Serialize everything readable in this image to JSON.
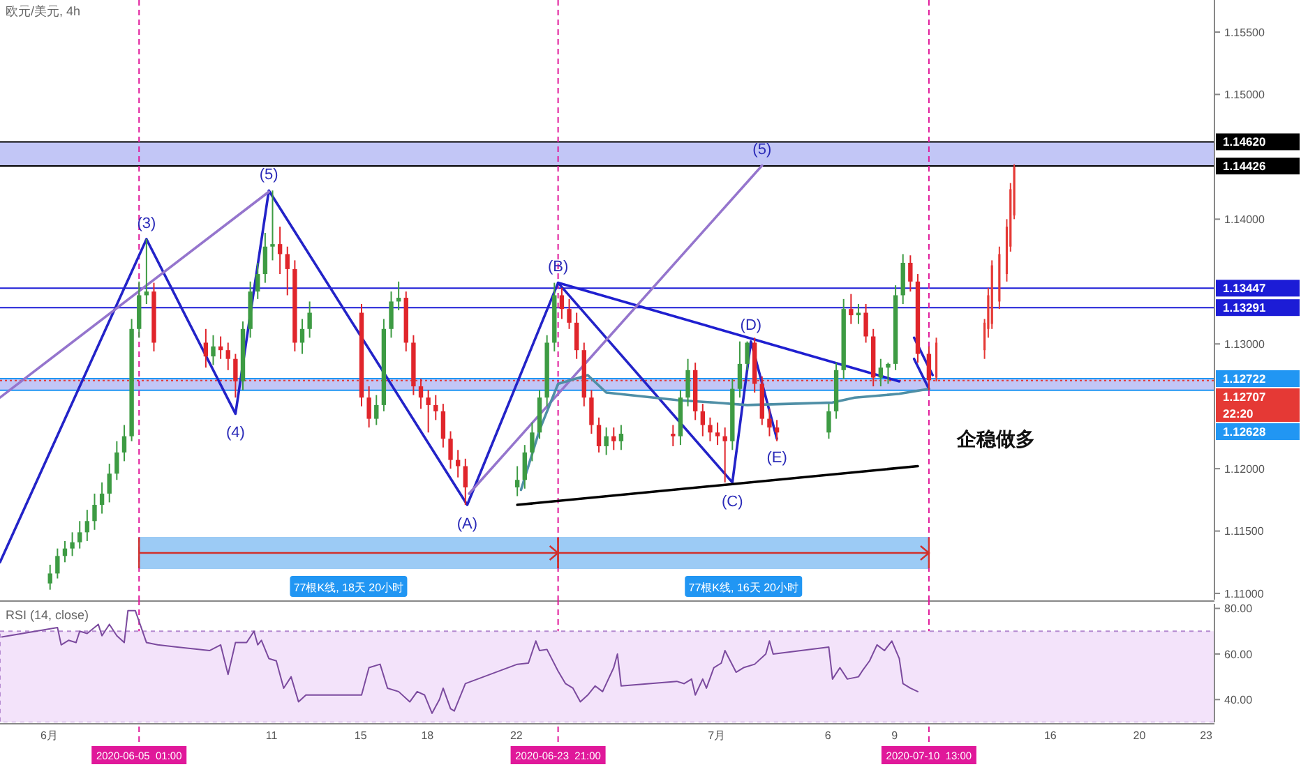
{
  "chart_data": [
    {
      "type": "candlestick",
      "title": "欧元/美元, 4h",
      "xlim": [
        "2020-05-29T19:00",
        "2020-07-23T09:00"
      ],
      "ylim": [
        1.1095,
        1.15757
      ],
      "yticks": [
        {
          "value": 1.11,
          "label": "1.11000"
        },
        {
          "value": 1.115,
          "label": "1.11500"
        },
        {
          "value": 1.12,
          "label": "1.12000"
        },
        {
          "value": 1.13,
          "label": "1.13000"
        },
        {
          "value": 1.14,
          "label": "1.14000"
        },
        {
          "value": 1.15,
          "label": "1.15000"
        },
        {
          "value": 1.155,
          "label": "1.15500"
        }
      ],
      "tick_labels": "y",
      "series": [
        {
          "type": "candlestick",
          "x": [
            "2020-06-01T01:00",
            "2020-06-01T09:00",
            "2020-06-01T17:00",
            "2020-06-02T01:00",
            "2020-06-02T09:00",
            "2020-06-02T17:00",
            "2020-06-03T01:00",
            "2020-06-03T09:00",
            "2020-06-03T17:00",
            "2020-06-04T01:00",
            "2020-06-04T09:00",
            "2020-06-04T17:00",
            "2020-06-05T01:00",
            "2020-06-05T09:00",
            "2020-06-05T17:00",
            "2020-06-08T01:00",
            "2020-06-08T09:00",
            "2020-06-08T17:00",
            "2020-06-09T01:00",
            "2020-06-09T09:00",
            "2020-06-09T17:00",
            "2020-06-10T01:00",
            "2020-06-10T09:00",
            "2020-06-10T17:00",
            "2020-06-11T01:00",
            "2020-06-11T09:00",
            "2020-06-11T17:00",
            "2020-06-12T01:00",
            "2020-06-12T09:00",
            "2020-06-12T17:00",
            "2020-06-15T01:00",
            "2020-06-15T09:00",
            "2020-06-15T17:00",
            "2020-06-16T01:00",
            "2020-06-16T09:00",
            "2020-06-16T17:00",
            "2020-06-17T01:00",
            "2020-06-17T09:00",
            "2020-06-17T17:00",
            "2020-06-18T01:00",
            "2020-06-18T09:00",
            "2020-06-18T17:00",
            "2020-06-19T01:00",
            "2020-06-19T09:00",
            "2020-06-19T17:00",
            "2020-06-22T01:00",
            "2020-06-22T09:00",
            "2020-06-22T17:00",
            "2020-06-23T01:00",
            "2020-06-23T09:00",
            "2020-06-23T17:00",
            "2020-06-24T01:00",
            "2020-06-24T09:00",
            "2020-06-24T17:00",
            "2020-06-25T01:00",
            "2020-06-25T09:00",
            "2020-06-25T17:00",
            "2020-06-26T01:00",
            "2020-06-26T09:00",
            "2020-06-26T17:00",
            "2020-06-29T01:00",
            "2020-06-29T09:00",
            "2020-06-29T17:00",
            "2020-06-30T01:00",
            "2020-06-30T09:00",
            "2020-06-30T17:00",
            "2020-07-01T01:00",
            "2020-07-01T09:00",
            "2020-07-01T17:00",
            "2020-07-02T01:00",
            "2020-07-02T09:00",
            "2020-07-02T17:00",
            "2020-07-03T01:00",
            "2020-07-03T09:00",
            "2020-07-03T17:00",
            "2020-07-06T01:00",
            "2020-07-06T09:00",
            "2020-07-06T17:00",
            "2020-07-07T01:00",
            "2020-07-07T09:00",
            "2020-07-07T17:00",
            "2020-07-08T01:00",
            "2020-07-08T09:00",
            "2020-07-08T17:00",
            "2020-07-09T01:00",
            "2020-07-09T09:00",
            "2020-07-09T17:00",
            "2020-07-10T01:00",
            "2020-07-10T13:00"
          ],
          "ohlc": [
            [
              1.1108,
              1.1123,
              1.1103,
              1.1116
            ],
            [
              1.1116,
              1.1136,
              1.1112,
              1.113
            ],
            [
              1.113,
              1.1142,
              1.1125,
              1.1136
            ],
            [
              1.1136,
              1.1149,
              1.113,
              1.1141
            ],
            [
              1.1141,
              1.1158,
              1.1136,
              1.1149
            ],
            [
              1.1149,
              1.1167,
              1.1142,
              1.1158
            ],
            [
              1.1158,
              1.118,
              1.1151,
              1.1171
            ],
            [
              1.1171,
              1.1189,
              1.1164,
              1.118
            ],
            [
              1.118,
              1.1204,
              1.1173,
              1.1196
            ],
            [
              1.1196,
              1.1222,
              1.1191,
              1.1213
            ],
            [
              1.1213,
              1.1235,
              1.1206,
              1.1226
            ],
            [
              1.1226,
              1.132,
              1.1222,
              1.1312
            ],
            [
              1.1312,
              1.135,
              1.1305,
              1.1339
            ],
            [
              1.1339,
              1.1384,
              1.1332,
              1.1342
            ],
            [
              1.1342,
              1.1349,
              1.1294,
              1.1301
            ],
            [
              1.1301,
              1.1312,
              1.1281,
              1.129
            ],
            [
              1.129,
              1.1307,
              1.1283,
              1.1298
            ],
            [
              1.1298,
              1.1306,
              1.1288,
              1.1295
            ],
            [
              1.1295,
              1.1301,
              1.1279,
              1.1288
            ],
            [
              1.1288,
              1.1292,
              1.1257,
              1.127
            ],
            [
              1.127,
              1.1318,
              1.1263,
              1.1312
            ],
            [
              1.1312,
              1.135,
              1.1305,
              1.1342
            ],
            [
              1.1342,
              1.1365,
              1.1336,
              1.1356
            ],
            [
              1.1356,
              1.1389,
              1.1349,
              1.1378
            ],
            [
              1.1378,
              1.1423,
              1.1367,
              1.138
            ],
            [
              1.138,
              1.1394,
              1.1356,
              1.1372
            ],
            [
              1.1372,
              1.1378,
              1.1339,
              1.136
            ],
            [
              1.136,
              1.1367,
              1.1294,
              1.1301
            ],
            [
              1.1301,
              1.132,
              1.1292,
              1.1312
            ],
            [
              1.1312,
              1.1334,
              1.1305,
              1.1325
            ],
            [
              1.1325,
              1.1332,
              1.125,
              1.1257
            ],
            [
              1.1257,
              1.1266,
              1.1233,
              1.124
            ],
            [
              1.124,
              1.1259,
              1.1235,
              1.1251
            ],
            [
              1.1251,
              1.132,
              1.1246,
              1.1312
            ],
            [
              1.1312,
              1.1342,
              1.1305,
              1.1334
            ],
            [
              1.1334,
              1.135,
              1.1327,
              1.1337
            ],
            [
              1.1337,
              1.1342,
              1.1294,
              1.1301
            ],
            [
              1.1301,
              1.1307,
              1.1259,
              1.1266
            ],
            [
              1.1266,
              1.1272,
              1.1248,
              1.1257
            ],
            [
              1.1257,
              1.1263,
              1.1229,
              1.1251
            ],
            [
              1.1251,
              1.1259,
              1.1239,
              1.1246
            ],
            [
              1.1246,
              1.1252,
              1.1217,
              1.1224
            ],
            [
              1.1224,
              1.123,
              1.12,
              1.1207
            ],
            [
              1.1207,
              1.1215,
              1.1193,
              1.1202
            ],
            [
              1.1202,
              1.1208,
              1.1171,
              1.1185
            ],
            [
              1.1185,
              1.1202,
              1.1178,
              1.1191
            ],
            [
              1.1191,
              1.1219,
              1.1184,
              1.1213
            ],
            [
              1.1213,
              1.1237,
              1.1206,
              1.1229
            ],
            [
              1.1229,
              1.1263,
              1.1224,
              1.1257
            ],
            [
              1.1257,
              1.1307,
              1.125,
              1.1301
            ],
            [
              1.1301,
              1.1349,
              1.1294,
              1.1339
            ],
            [
              1.1339,
              1.1345,
              1.132,
              1.1328
            ],
            [
              1.1328,
              1.1336,
              1.1312,
              1.1317
            ],
            [
              1.1317,
              1.1325,
              1.1288,
              1.1295
            ],
            [
              1.1295,
              1.1301,
              1.125,
              1.1257
            ],
            [
              1.1257,
              1.1263,
              1.1228,
              1.1235
            ],
            [
              1.1235,
              1.1241,
              1.1213,
              1.1218
            ],
            [
              1.1218,
              1.1233,
              1.1211,
              1.1226
            ],
            [
              1.1226,
              1.1233,
              1.1215,
              1.1222
            ],
            [
              1.1222,
              1.1235,
              1.1215,
              1.1228
            ],
            [
              1.1228,
              1.1235,
              1.1218,
              1.1226
            ],
            [
              1.1226,
              1.1263,
              1.1219,
              1.1257
            ],
            [
              1.1257,
              1.1288,
              1.125,
              1.1279
            ],
            [
              1.1279,
              1.1285,
              1.1239,
              1.1246
            ],
            [
              1.1246,
              1.1252,
              1.1226,
              1.1235
            ],
            [
              1.1235,
              1.1241,
              1.1222,
              1.1229
            ],
            [
              1.1229,
              1.1237,
              1.1219,
              1.1226
            ],
            [
              1.1226,
              1.1233,
              1.1189,
              1.1222
            ],
            [
              1.1222,
              1.1272,
              1.1215,
              1.1264
            ],
            [
              1.1264,
              1.1302,
              1.1257,
              1.1284
            ],
            [
              1.1284,
              1.1302,
              1.1279,
              1.1301
            ],
            [
              1.1301,
              1.1305,
              1.1261,
              1.1268
            ],
            [
              1.1268,
              1.1274,
              1.1235,
              1.124
            ],
            [
              1.124,
              1.1248,
              1.1226,
              1.1233
            ],
            [
              1.1233,
              1.1239,
              1.1222,
              1.1229
            ],
            [
              1.1229,
              1.1252,
              1.1224,
              1.1246
            ],
            [
              1.1246,
              1.1285,
              1.124,
              1.1279
            ],
            [
              1.1279,
              1.1336,
              1.1272,
              1.1328
            ],
            [
              1.1328,
              1.134,
              1.1316,
              1.1323
            ],
            [
              1.1323,
              1.1332,
              1.1316,
              1.1325
            ],
            [
              1.1325,
              1.1332,
              1.1301,
              1.1306
            ],
            [
              1.1306,
              1.1312,
              1.1266,
              1.1273
            ],
            [
              1.1273,
              1.1288,
              1.1266,
              1.1281
            ],
            [
              1.1281,
              1.1285,
              1.1268,
              1.1284
            ],
            [
              1.1284,
              1.1347,
              1.1279,
              1.1339
            ],
            [
              1.1339,
              1.1372,
              1.1332,
              1.1365
            ],
            [
              1.1365,
              1.1371,
              1.1342,
              1.135
            ],
            [
              1.135,
              1.1356,
              1.1285,
              1.1292
            ],
            [
              1.1292,
              1.1298,
              1.1263,
              1.1271
            ]
          ]
        },
        {
          "type": "candlestick",
          "color": "#e53935",
          "x": [
            "2020-07-10T21:00",
            "2020-07-13T01:00",
            "2020-07-13T05:00",
            "2020-07-13T09:00",
            "2020-07-13T17:00",
            "2020-07-14T01:00",
            "2020-07-14T05:00",
            "2020-07-14T09:00"
          ],
          "ohlc": [
            [
              1.1273,
              1.1305,
              1.127,
              1.1301
            ],
            [
              1.1295,
              1.132,
              1.1288,
              1.1317
            ],
            [
              1.1312,
              1.1345,
              1.1305,
              1.1339
            ],
            [
              1.1316,
              1.1367,
              1.1312,
              1.1363
            ],
            [
              1.1334,
              1.1378,
              1.1328,
              1.1372
            ],
            [
              1.1356,
              1.14,
              1.135,
              1.1394
            ],
            [
              1.1378,
              1.1429,
              1.1374,
              1.1424
            ],
            [
              1.1403,
              1.1444,
              1.14,
              1.1442
            ]
          ]
        },
        {
          "type": "line",
          "color": "#2323c8",
          "x": [
            "2020-05-29T19:00",
            "2020-06-05T09:00",
            "2020-06-09T09:00",
            "2020-06-10T21:00",
            "2020-06-19T19:00",
            "2020-06-23T21:00",
            "2020-07-01T17:00",
            "2020-07-02T13:00",
            "2020-07-03T17:00"
          ],
          "values": [
            1.1125,
            1.1384,
            1.1244,
            1.1423,
            1.1171,
            1.1349,
            1.1189,
            1.1302,
            1.1224
          ]
        },
        {
          "type": "line",
          "color": "#1f1fd0",
          "x": [
            "2020-06-23T21:00",
            "2020-07-09T05:00"
          ],
          "values": [
            1.1349,
            1.127
          ]
        },
        {
          "type": "line",
          "color": "#000000",
          "x": [
            "2020-06-22T01:00",
            "2020-07-10T01:00"
          ],
          "values": [
            1.1171,
            1.1202
          ]
        },
        {
          "type": "line",
          "color": "#9575cd",
          "x": [
            "2020-05-29T19:00",
            "2020-06-10T21:00"
          ],
          "values": [
            1.1257,
            1.1422
          ]
        },
        {
          "type": "line",
          "color": "#9575cd",
          "x": [
            "2020-06-19T21:00",
            "2020-07-03T01:00"
          ],
          "values": [
            1.118,
            1.1443
          ]
        },
        {
          "type": "line",
          "color": "#2323c8",
          "x": [
            "2020-07-09T21:00",
            "2020-07-10T17:00"
          ],
          "values": [
            1.1305,
            1.1275
          ]
        },
        {
          "type": "line",
          "color": "#2323c8",
          "x": [
            "2020-07-09T21:00",
            "2020-07-10T13:00"
          ],
          "values": [
            1.1288,
            1.1264
          ]
        },
        {
          "type": "line",
          "color": "#4f8fa6",
          "x": [
            "2020-06-22T05:00",
            "2020-06-23T01:00",
            "2020-06-23T21:00",
            "2020-06-25T05:00",
            "2020-06-26T01:00",
            "2020-06-29T05:00",
            "2020-06-30T21:00",
            "2020-07-02T09:00",
            "2020-07-06T05:00",
            "2020-07-07T05:00",
            "2020-07-09T05:00",
            "2020-07-10T13:00"
          ],
          "values": [
            1.1183,
            1.1231,
            1.1268,
            1.1275,
            1.1261,
            1.1255,
            1.1253,
            1.1251,
            1.1253,
            1.1257,
            1.126,
            1.1264
          ]
        }
      ],
      "bands": [
        {
          "axis": "y",
          "from": 1.14426,
          "to": 1.1462,
          "color": "#aeb3f3"
        },
        {
          "axis": "y",
          "from": 1.12628,
          "to": 1.12722,
          "color": "#aeb3f3"
        },
        {
          "axis": "x",
          "from": "2020-06-05T01:00",
          "to": "2020-06-23T21:00",
          "label": "77根K线, 18天 20小时",
          "color": "#9ccbf5"
        },
        {
          "axis": "x",
          "from": "2020-06-23T21:00",
          "to": "2020-07-10T13:00",
          "label": "77根K线, 16天 20小时",
          "color": "#9ccbf5"
        }
      ],
      "ref_lines": [
        {
          "axis": "y",
          "value": 1.1462,
          "label": "1.14620",
          "color": "#000000",
          "line_style": "solid"
        },
        {
          "axis": "y",
          "value": 1.14426,
          "label": "1.14426",
          "color": "#000000",
          "line_style": "solid"
        },
        {
          "axis": "y",
          "value": 1.13447,
          "label": "1.13447",
          "color": "#1c1cd6",
          "line_style": "solid"
        },
        {
          "axis": "y",
          "value": 1.13291,
          "label": "1.13291",
          "color": "#1c1cd6",
          "line_style": "solid"
        },
        {
          "axis": "y",
          "value": 1.12722,
          "label": "1.12722",
          "color": "#2196f3",
          "line_style": "solid"
        },
        {
          "axis": "y",
          "value": 1.12707,
          "label": "1.12707\n22:20",
          "color": "#e53935",
          "line_style": "dotted"
        },
        {
          "axis": "y",
          "value": 1.12628,
          "label": "1.12628",
          "color": "#2196f3",
          "line_style": "solid"
        },
        {
          "axis": "x",
          "value": "2020-06-05T01:00",
          "label": "2020-06-05  01:00",
          "color": "#e0189a",
          "line_style": "dashed"
        },
        {
          "axis": "x",
          "value": "2020-06-23T21:00",
          "label": "2020-06-23  21:00",
          "color": "#e0189a",
          "line_style": "dashed"
        },
        {
          "axis": "x",
          "value": "2020-07-10T13:00",
          "label": "2020-07-10  13:00",
          "color": "#e0189a",
          "line_style": "dashed"
        }
      ],
      "annotations": [
        {
          "text": "(3)",
          "x": "2020-06-05T09:00",
          "y": 1.1384
        },
        {
          "text": "(4)",
          "x": "2020-06-09T09:00",
          "y": 1.1244
        },
        {
          "text": "(5)",
          "x": "2020-06-10T21:00",
          "y": 1.1423
        },
        {
          "text": "(A)",
          "x": "2020-06-19T19:00",
          "y": 1.1171
        },
        {
          "text": "(B)",
          "x": "2020-06-23T21:00",
          "y": 1.1349
        },
        {
          "text": "(C)",
          "x": "2020-07-01T17:00",
          "y": 1.1189
        },
        {
          "text": "(D)",
          "x": "2020-07-02T13:00",
          "y": 1.1302
        },
        {
          "text": "(E)",
          "x": "2020-07-03T17:00",
          "y": 1.1224
        },
        {
          "text": "(5)",
          "x": "2020-07-03T01:00",
          "y": 1.1443
        },
        "企稳做多"
      ]
    },
    {
      "type": "line",
      "title": "RSI (14, close)",
      "xlim": [
        "2020-05-29T19:00",
        "2020-07-23T09:00"
      ],
      "ylim": [
        30,
        82
      ],
      "yticks": [
        {
          "value": 40,
          "label": "40.00"
        },
        {
          "value": 60,
          "label": "60.00"
        },
        {
          "value": 80,
          "label": "80.00"
        }
      ],
      "xticks": [
        {
          "value": "2020-06-01",
          "label": "6月"
        },
        {
          "value": "2020-06-11",
          "label": "11"
        },
        {
          "value": "2020-06-15",
          "label": "15"
        },
        {
          "value": "2020-06-18",
          "label": "18"
        },
        {
          "value": "2020-06-22",
          "label": "22"
        },
        {
          "value": "2020-07-01",
          "label": "7月"
        },
        {
          "value": "2020-07-06",
          "label": "6"
        },
        {
          "value": "2020-07-09",
          "label": "9"
        },
        {
          "value": "2020-07-16",
          "label": "16"
        },
        {
          "value": "2020-07-20",
          "label": "20"
        },
        {
          "value": "2020-07-23",
          "label": "23"
        }
      ],
      "bands": [
        {
          "axis": "y",
          "from": 30,
          "to": 70,
          "color": "#f3e3fa"
        }
      ],
      "series": [
        {
          "type": "line",
          "color": "#7b4a9e",
          "x": [
            "2020-05-29T21:00",
            "2020-06-01T09:00",
            "2020-06-01T13:00",
            "2020-06-01T21:00",
            "2020-06-02T05:00",
            "2020-06-02T09:00",
            "2020-06-02T17:00",
            "2020-06-03T05:00",
            "2020-06-03T09:00",
            "2020-06-03T17:00",
            "2020-06-04T01:00",
            "2020-06-04T09:00",
            "2020-06-04T13:00",
            "2020-06-04T21:00",
            "2020-06-05T09:00",
            "2020-06-05T21:00",
            "2020-06-08T05:00",
            "2020-06-08T17:00",
            "2020-06-09T01:00",
            "2020-06-09T09:00",
            "2020-06-09T21:00",
            "2020-06-10T05:00",
            "2020-06-10T09:00",
            "2020-06-10T13:00",
            "2020-06-10T21:00",
            "2020-06-11T05:00",
            "2020-06-11T13:00",
            "2020-06-11T21:00",
            "2020-06-12T05:00",
            "2020-06-12T13:00",
            "2020-06-15T01:00",
            "2020-06-15T09:00",
            "2020-06-15T21:00",
            "2020-06-16T05:00",
            "2020-06-16T17:00",
            "2020-06-17T05:00",
            "2020-06-17T13:00",
            "2020-06-17T21:00",
            "2020-06-18T05:00",
            "2020-06-18T13:00",
            "2020-06-18T17:00",
            "2020-06-19T01:00",
            "2020-06-19T05:00",
            "2020-06-19T17:00",
            "2020-06-22T01:00",
            "2020-06-22T13:00",
            "2020-06-22T21:00",
            "2020-06-23T01:00",
            "2020-06-23T09:00",
            "2020-06-23T21:00",
            "2020-06-24T05:00",
            "2020-06-24T13:00",
            "2020-06-24T21:00",
            "2020-06-25T05:00",
            "2020-06-25T13:00",
            "2020-06-25T21:00",
            "2020-06-26T09:00",
            "2020-06-26T13:00",
            "2020-06-26T17:00",
            "2020-06-29T05:00",
            "2020-06-29T13:00",
            "2020-06-29T21:00",
            "2020-06-30T01:00",
            "2020-06-30T09:00",
            "2020-06-30T13:00",
            "2020-06-30T21:00",
            "2020-07-01T05:00",
            "2020-07-01T09:00",
            "2020-07-01T21:00",
            "2020-07-02T05:00",
            "2020-07-02T17:00",
            "2020-07-03T05:00",
            "2020-07-03T09:00",
            "2020-07-03T13:00",
            "2020-07-06T01:00",
            "2020-07-06T05:00",
            "2020-07-06T13:00",
            "2020-07-06T21:00",
            "2020-07-07T09:00",
            "2020-07-07T13:00",
            "2020-07-07T21:00",
            "2020-07-08T05:00",
            "2020-07-08T13:00",
            "2020-07-08T21:00",
            "2020-07-09T05:00",
            "2020-07-09T09:00",
            "2020-07-09T17:00",
            "2020-07-10T01:00"
          ],
          "values": [
            67.5,
            71.6,
            64,
            66,
            65,
            70,
            69,
            73,
            68,
            73,
            68,
            65,
            79,
            79,
            65,
            64,
            61.5,
            64,
            51,
            65,
            65,
            70,
            64,
            66,
            58,
            57,
            45,
            50,
            39,
            42,
            42,
            54,
            55.5,
            45,
            43.5,
            39,
            43.5,
            42,
            34,
            40,
            45,
            36,
            35,
            47,
            55.5,
            56,
            65.7,
            61.5,
            62,
            52.5,
            47,
            45,
            39,
            42,
            46,
            43.5,
            54,
            60,
            46,
            48,
            47,
            49,
            42,
            49,
            45,
            54,
            56,
            61.5,
            52,
            54,
            55.5,
            60,
            65.7,
            60,
            63,
            49,
            54,
            49,
            50,
            52.5,
            57,
            64,
            61.5,
            65.7,
            58,
            47,
            45,
            43.5
          ]
        }
      ]
    }
  ]
}
